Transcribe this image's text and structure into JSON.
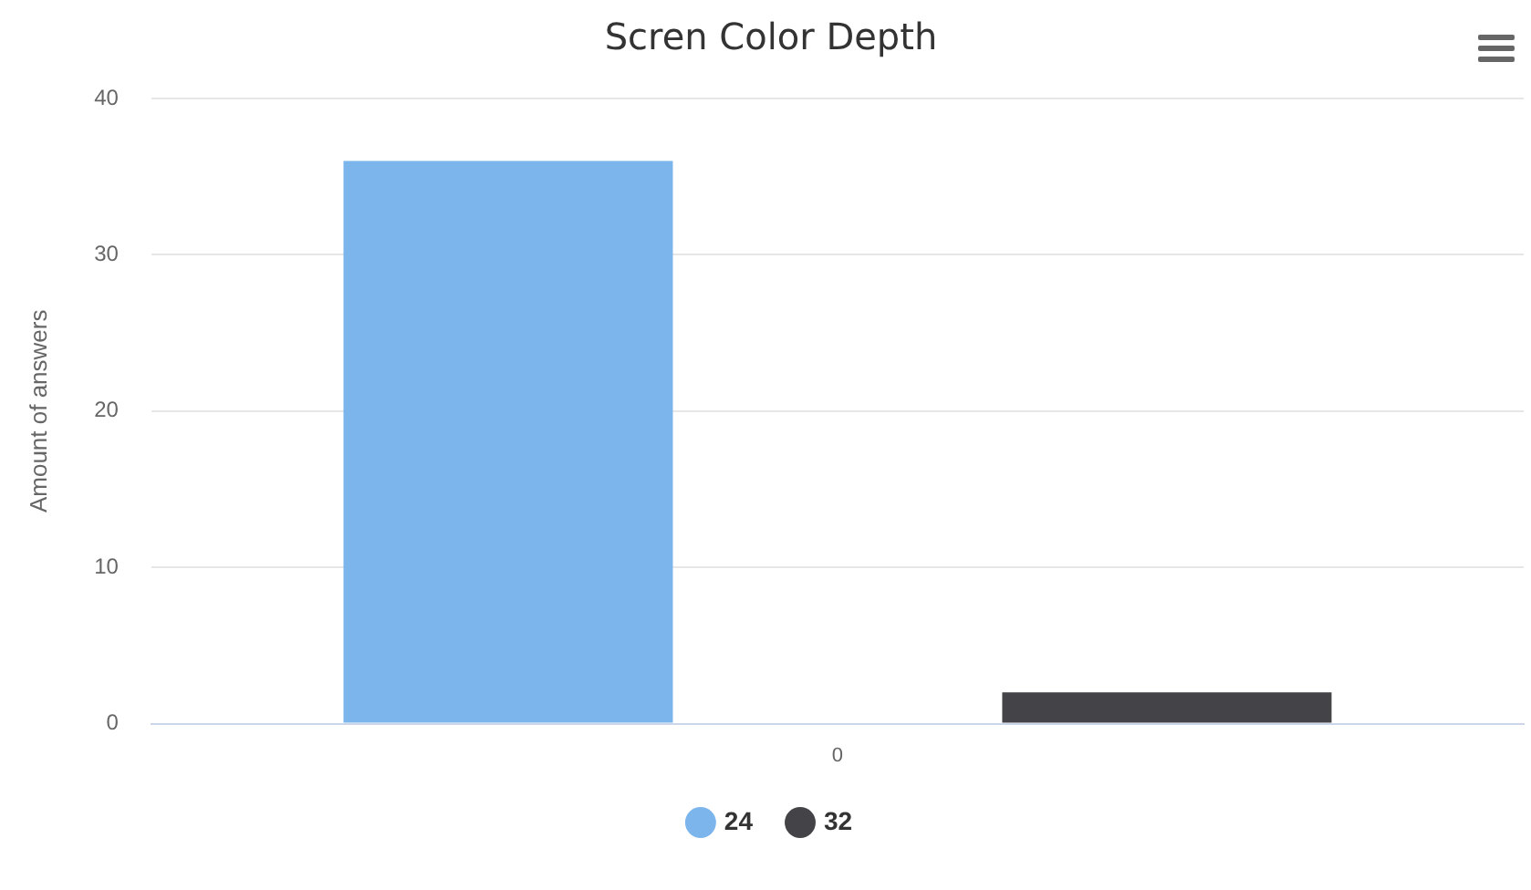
{
  "chart_data": {
    "type": "bar",
    "title": "Scren Color Depth",
    "ylabel": "Amount of answers",
    "categories": [
      "0"
    ],
    "series": [
      {
        "name": "24",
        "color": "#7cb5ec",
        "values": [
          36
        ]
      },
      {
        "name": "32",
        "color": "#434348",
        "values": [
          2
        ]
      }
    ],
    "ylim": [
      0,
      40
    ],
    "yticks": [
      0,
      10,
      20,
      30,
      40
    ],
    "grid": "y",
    "legend": "bottom"
  }
}
